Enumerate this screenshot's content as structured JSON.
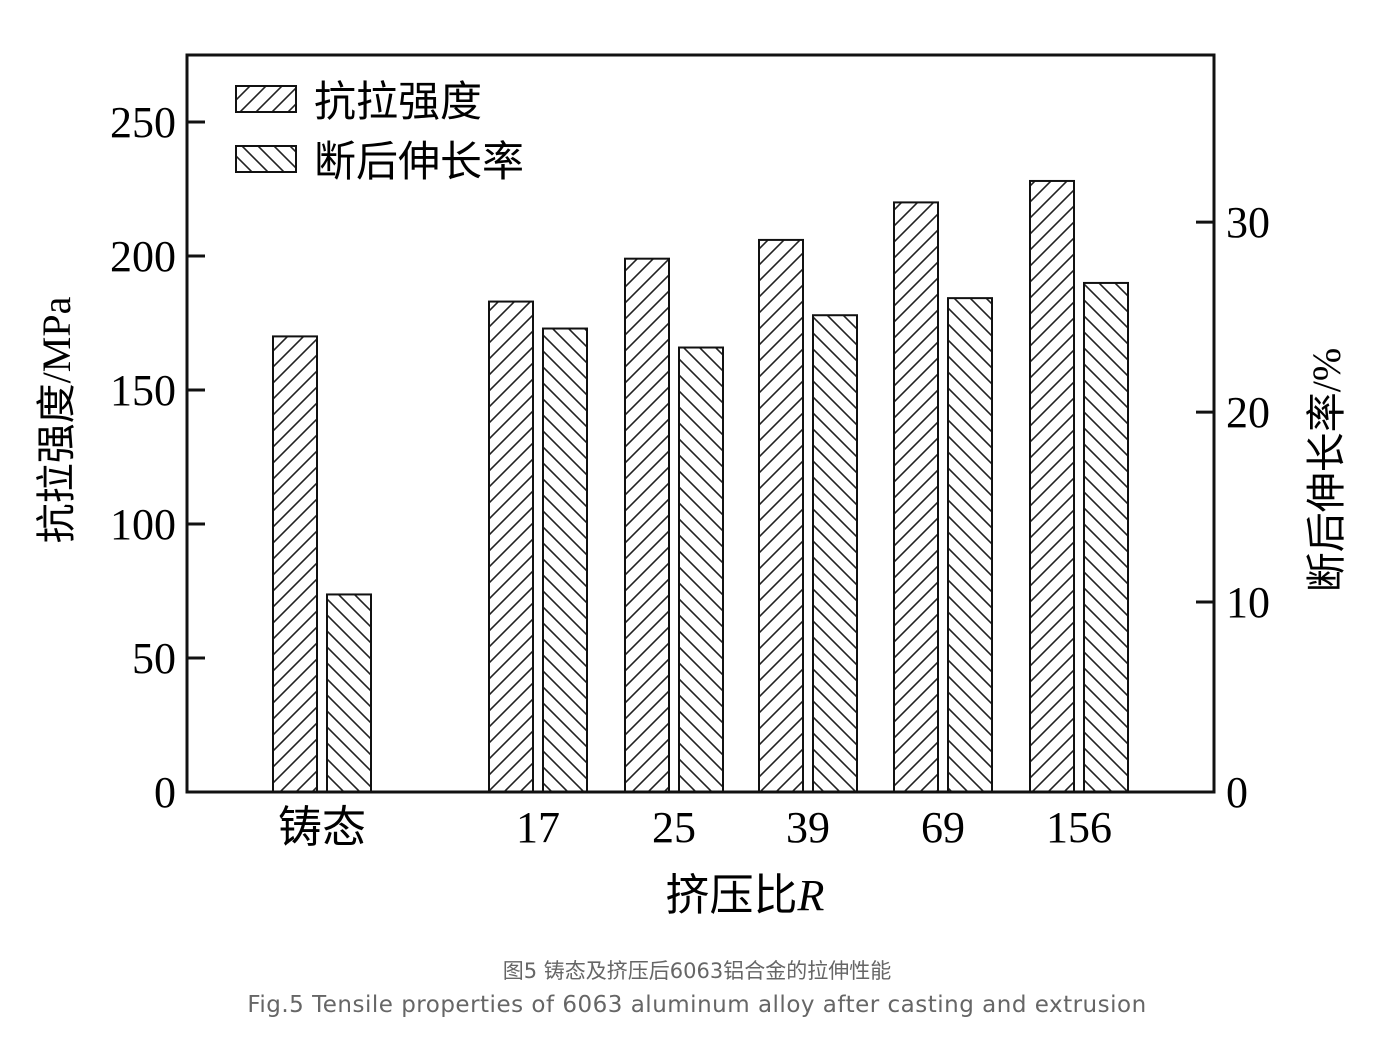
{
  "chart_data": {
    "type": "bar",
    "categories": [
      "铸态",
      "17",
      "25",
      "39",
      "69",
      "156"
    ],
    "series": [
      {
        "name": "抗拉强度",
        "axis": "left",
        "unit": "MPa",
        "values": [
          170,
          183,
          199,
          206,
          220,
          228
        ]
      },
      {
        "name": "断后伸长率",
        "axis": "right",
        "unit": "%",
        "values": [
          10.4,
          24.4,
          23.4,
          25.1,
          26.0,
          26.8
        ]
      }
    ],
    "xlabel": "挤压比",
    "xlabel_italic": "R",
    "ylabel_left": "抗拉强度/MPa",
    "ylabel_right": "断后伸长率/%",
    "ylim_left": [
      0,
      275
    ],
    "ylim_right": [
      0,
      38.8
    ],
    "yticks_left": [
      0,
      50,
      100,
      150,
      200,
      250
    ],
    "yticks_right": [
      0,
      10,
      20,
      30
    ],
    "legend_position": "top-left",
    "grid": false
  },
  "caption": {
    "zh": "图5 铸态及挤压后6063铝合金的拉伸性能",
    "en": "Fig.5 Tensile properties of 6063 aluminum alloy after casting and extrusion"
  }
}
